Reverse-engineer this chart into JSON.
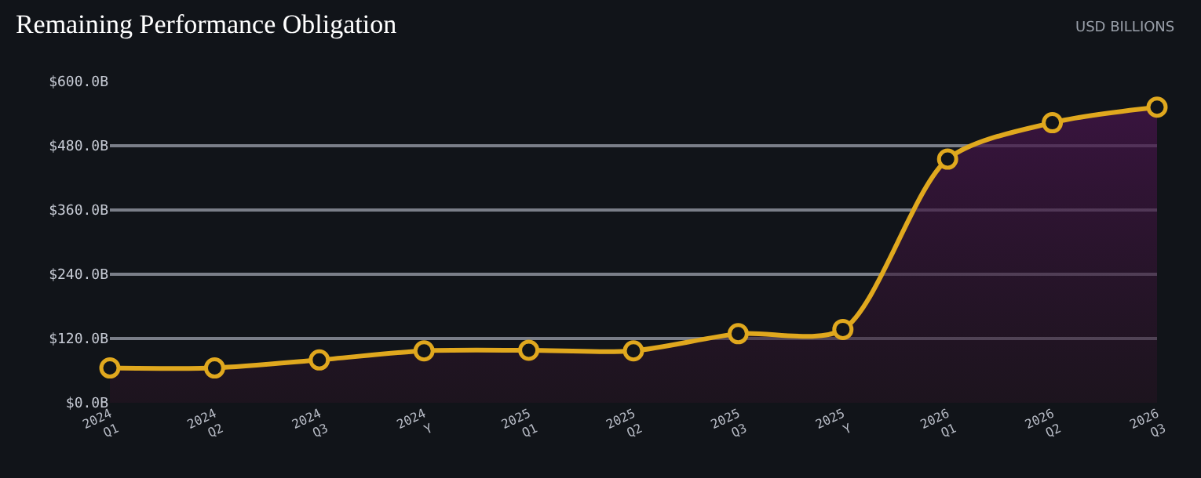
{
  "chart_data": {
    "type": "area",
    "title": "Remaining Performance Obligation",
    "annotations": [
      "USD BILLIONS"
    ],
    "categories": [
      "2024 Q1",
      "2024 Q2",
      "2024 Q3",
      "2024 Y",
      "2025 Q1",
      "2025 Q2",
      "2025 Q3",
      "2025 Y",
      "2026 Q1",
      "2026 Q2",
      "2026 Q3"
    ],
    "series": [
      {
        "color": "#e0a81e",
        "values": [
          65,
          65,
          80,
          97,
          98,
          97,
          129,
          137,
          455,
          523,
          552
        ]
      }
    ],
    "ylim": [
      0,
      600
    ],
    "yticks": [
      {
        "value": 0,
        "label": "$0.0B"
      },
      {
        "value": 120,
        "label": "$120.0B"
      },
      {
        "value": 240,
        "label": "$240.0B"
      },
      {
        "value": 360,
        "label": "$360.0B"
      },
      {
        "value": 480,
        "label": "$480.0B"
      },
      {
        "value": 600,
        "label": "$600.0B"
      }
    ],
    "grid": "y",
    "legend": false,
    "marker": "circle",
    "line_style": "solid"
  }
}
